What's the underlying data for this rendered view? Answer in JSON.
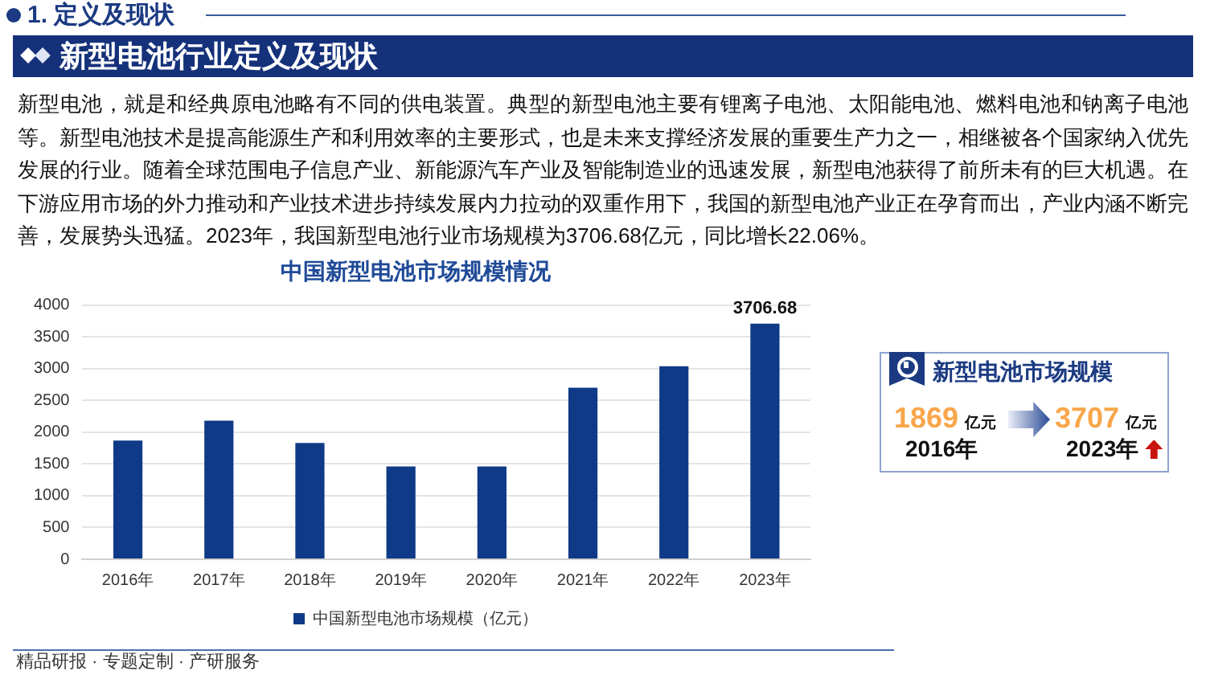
{
  "chart_data": [
    {
      "type": "other",
      "title": "1. 定义及现状",
      "subtitle": "新型电池行业定义及现状",
      "annotations": [
        "新型电池，就是和经典原电池略有不同的供电装置。典型的新型电池主要有锂离子电池、太阳能电池、燃料电池和钠离子电池等。新型电池技术是提高能源生产和利用效率的主要形式，也是未来支撑经济发展的重要生产力之一，相继被各个国家纳入优先发展的行业。随着全球范围电子信息产业、新能源汽车产业及智能制造业的迅速发展，新型电池获得了前所未有的巨大机遇。在下游应用市场的外力推动和产业技术进步持续发展内力拉动的双重作用下，我国的新型电池产业正在孕育而出，产业内涵不断完善，发展势头迅猛。2023年，我国新型电池行业市场规模为3706.68亿元，同比增长22.06%。",
        "精品研报 · 专题定制 · 产研服务"
      ]
    },
    {
      "type": "bar",
      "title": "中国新型电池市场规模情况",
      "categories": [
        "2016年",
        "2017年",
        "2018年",
        "2019年",
        "2020年",
        "2021年",
        "2022年",
        "2023年"
      ],
      "series": [
        {
          "name": "中国新型电池市场规模（亿元）",
          "color": "#0f3a87",
          "values": [
            1869,
            2180,
            1830,
            1460,
            1460,
            2700,
            3037,
            3706.68
          ],
          "value_labels": [
            null,
            null,
            null,
            null,
            null,
            null,
            null,
            "3706.68"
          ]
        }
      ],
      "ylim": [
        0,
        4000
      ],
      "yticks": [
        0,
        500,
        1000,
        1500,
        2000,
        2500,
        3000,
        3500,
        4000
      ],
      "grid": "y",
      "legend": "bottom"
    },
    {
      "type": "other",
      "title": "新型电池市场规模",
      "annotations": [
        "1869",
        "亿元",
        "2016年",
        "3707",
        "亿元",
        "2023年"
      ]
    }
  ]
}
